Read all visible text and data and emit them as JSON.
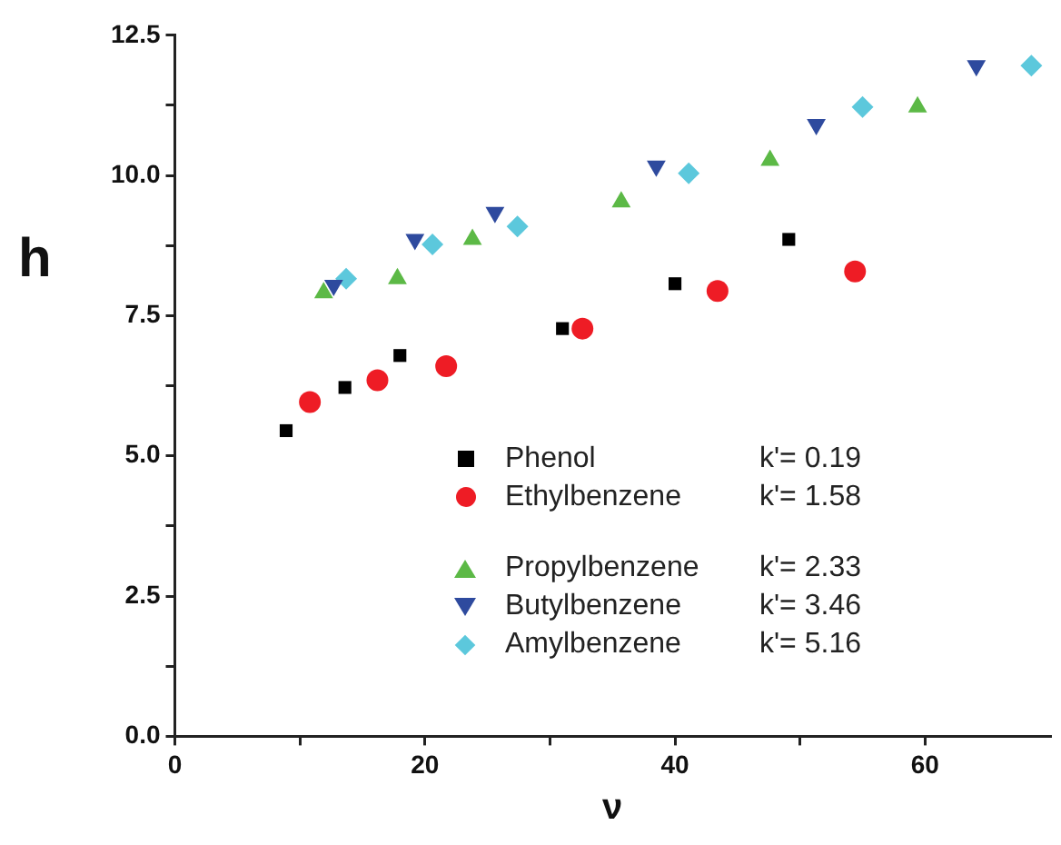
{
  "chart_data": {
    "type": "scatter",
    "xlabel": "ν",
    "ylabel": "h",
    "xlim": [
      0,
      70
    ],
    "xticks": [
      0,
      {
        "value": 10,
        "label": null
      },
      20,
      {
        "value": 30,
        "label": null
      },
      40,
      {
        "value": 50,
        "label": null
      },
      60
    ],
    "ylim": [
      0,
      12.5
    ],
    "yticks": [
      {
        "value": 0,
        "label": "0.0"
      },
      {
        "value": 1.25,
        "label": null
      },
      {
        "value": 2.5,
        "label": "2.5"
      },
      {
        "value": 3.75,
        "label": null
      },
      {
        "value": 5,
        "label": "5.0"
      },
      {
        "value": 6.25,
        "label": null
      },
      {
        "value": 7.5,
        "label": "7.5"
      },
      {
        "value": 8.75,
        "label": null
      },
      {
        "value": 10,
        "label": "10.0"
      },
      {
        "value": 11.25,
        "label": null
      },
      {
        "value": 12.5,
        "label": "12.5"
      }
    ],
    "grid": false,
    "legend": "bottom right",
    "annotations": [
      "k'= 0.19",
      "k'= 1.58",
      "k'= 2.33",
      "k'= 3.46",
      "k'= 5.16"
    ],
    "series": [
      {
        "name": "Phenol",
        "color": "#000000",
        "marker": "square",
        "x": [
          8.9,
          13.6,
          18.0,
          31.0,
          40.0,
          49.1
        ],
        "values": [
          5.45,
          6.22,
          6.79,
          7.27,
          8.07,
          8.86
        ]
      },
      {
        "name": "Ethylbenzene",
        "color": "#ee1c25",
        "marker": "circle",
        "x": [
          10.8,
          16.2,
          21.7,
          32.6,
          43.4,
          54.4
        ],
        "values": [
          5.96,
          6.35,
          6.6,
          7.27,
          7.94,
          8.29
        ]
      },
      {
        "name": "Propylbenzene",
        "color": "#5cb946",
        "marker": "triangle",
        "x": [
          11.9,
          17.8,
          23.8,
          35.7,
          47.6,
          59.4
        ],
        "values": [
          7.91,
          8.16,
          8.86,
          9.53,
          10.27,
          11.22
        ]
      },
      {
        "name": "Butylbenzene",
        "color": "#2e4a9e",
        "marker": "triangle_down",
        "x": [
          12.7,
          19.2,
          25.6,
          38.5,
          51.3,
          64.1
        ],
        "values": [
          8.04,
          8.86,
          9.34,
          10.17,
          10.91,
          11.96
        ]
      },
      {
        "name": "Amylbenzene",
        "color": "#5cc8dc",
        "marker": "diamond",
        "x": [
          13.7,
          20.6,
          27.4,
          41.1,
          55.0,
          68.5
        ],
        "values": [
          8.16,
          8.77,
          9.09,
          10.04,
          11.22,
          11.96
        ]
      }
    ]
  }
}
